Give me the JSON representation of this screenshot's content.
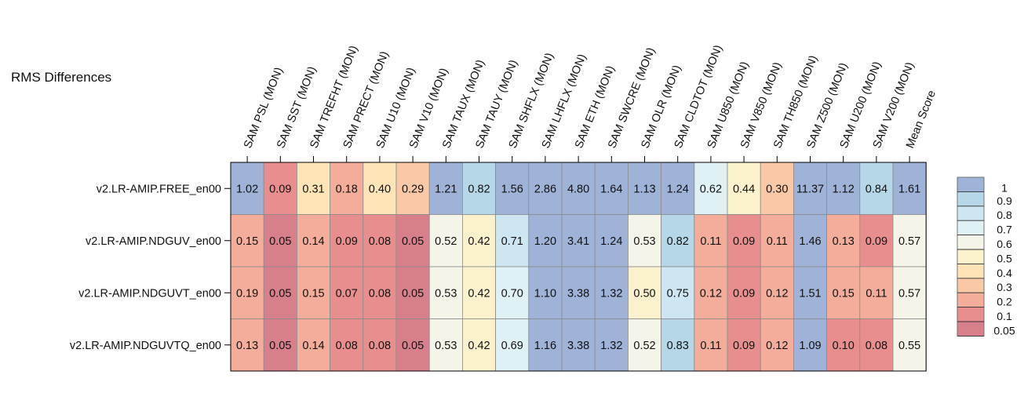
{
  "chart_data": {
    "type": "heatmap",
    "title": "RMS Differences",
    "columns": [
      "SAM PSL (MON)",
      "SAM SST (MON)",
      "SAM TREFHT (MON)",
      "SAM PRECT (MON)",
      "SAM U10 (MON)",
      "SAM V10 (MON)",
      "SAM TAUX (MON)",
      "SAM TAUY (MON)",
      "SAM SHFLX (MON)",
      "SAM LHFLX (MON)",
      "SAM ETH (MON)",
      "SAM SWCRE (MON)",
      "SAM OLR (MON)",
      "SAM CLDTOT (MON)",
      "SAM U850 (MON)",
      "SAM V850 (MON)",
      "SAM TH850 (MON)",
      "SAM Z500 (MON)",
      "SAM U200 (MON)",
      "SAM V200 (MON)",
      "Mean Score"
    ],
    "rows": [
      {
        "name": "v2.LR-AMIP.FREE_en00",
        "labels": [
          "1.02",
          "0.09",
          "0.31",
          "0.18",
          "0.40",
          "0.29",
          "1.21",
          "0.82",
          "1.56",
          "2.86",
          "4.80",
          "1.64",
          "1.13",
          "1.24",
          "0.62",
          "0.44",
          "0.30",
          "11.37",
          "1.12",
          "0.84",
          "1.61"
        ],
        "values": [
          1.02,
          0.09,
          0.31,
          0.18,
          0.4,
          0.29,
          1.21,
          0.82,
          1.56,
          2.86,
          4.8,
          1.64,
          1.13,
          1.24,
          0.62,
          0.44,
          0.3,
          11.37,
          1.12,
          0.84,
          1.61
        ]
      },
      {
        "name": "v2.LR-AMIP.NDGUV_en00",
        "labels": [
          "0.15",
          "0.05",
          "0.14",
          "0.09",
          "0.08",
          "0.05",
          "0.52",
          "0.42",
          "0.71",
          "1.20",
          "3.41",
          "1.24",
          "0.53",
          "0.82",
          "0.11",
          "0.09",
          "0.11",
          "1.46",
          "0.13",
          "0.09",
          "0.57"
        ],
        "values": [
          0.15,
          0.05,
          0.14,
          0.09,
          0.08,
          0.05,
          0.52,
          0.42,
          0.71,
          1.2,
          3.41,
          1.24,
          0.53,
          0.82,
          0.11,
          0.09,
          0.11,
          1.46,
          0.13,
          0.09,
          0.57
        ]
      },
      {
        "name": "v2.LR-AMIP.NDGUVT_en00",
        "labels": [
          "0.19",
          "0.05",
          "0.15",
          "0.07",
          "0.08",
          "0.05",
          "0.53",
          "0.42",
          "0.70",
          "1.10",
          "3.38",
          "1.32",
          "0.50",
          "0.75",
          "0.12",
          "0.09",
          "0.12",
          "1.51",
          "0.15",
          "0.11",
          "0.57"
        ],
        "values": [
          0.19,
          0.05,
          0.15,
          0.07,
          0.08,
          0.05,
          0.53,
          0.42,
          0.7,
          1.1,
          3.38,
          1.32,
          0.5,
          0.75,
          0.12,
          0.09,
          0.12,
          1.51,
          0.15,
          0.11,
          0.57
        ]
      },
      {
        "name": "v2.LR-AMIP.NDGUVTQ_en00",
        "labels": [
          "0.13",
          "0.05",
          "0.14",
          "0.08",
          "0.08",
          "0.05",
          "0.53",
          "0.42",
          "0.69",
          "1.16",
          "3.38",
          "1.32",
          "0.52",
          "0.83",
          "0.11",
          "0.09",
          "0.12",
          "1.09",
          "0.10",
          "0.08",
          "0.55"
        ],
        "values": [
          0.13,
          0.05,
          0.14,
          0.08,
          0.08,
          0.05,
          0.53,
          0.42,
          0.69,
          1.16,
          3.38,
          1.32,
          0.52,
          0.83,
          0.11,
          0.09,
          0.12,
          1.09,
          0.1,
          0.08,
          0.55
        ]
      }
    ],
    "legend": {
      "placement": "right",
      "ticks": [
        "1",
        "0.9",
        "0.8",
        "0.7",
        "0.6",
        "0.5",
        "0.4",
        "0.3",
        "0.2",
        "0.1",
        "0.05"
      ],
      "boundaries": [
        0.05,
        0.1,
        0.2,
        0.3,
        0.4,
        0.5,
        0.6,
        0.7,
        0.8,
        0.9,
        1.0
      ],
      "colors": [
        "#d87f8c",
        "#e98e8f",
        "#f4ad9a",
        "#f9c8a6",
        "#fde3b6",
        "#fbf1cc",
        "#f5f4e8",
        "#e0f1f6",
        "#cde6f1",
        "#b5d7e8",
        "#9fb2d8"
      ]
    }
  }
}
